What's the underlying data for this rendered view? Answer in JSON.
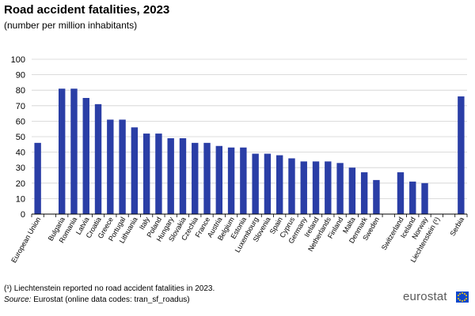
{
  "header": {
    "title": "Road accident fatalities, 2023",
    "subtitle": "(number  per million  inhabitants)"
  },
  "footer": {
    "footnote": "(¹) Liechtenstein reported no road accident fatalities in 2023.",
    "source_label": "Source:",
    "source_text": " Eurostat (online data codes: tran_sf_roadus)",
    "logo_text": "eurostat"
  },
  "colors": {
    "bar": "#2a3ea6",
    "grid": "#d0d0d0",
    "axis": "#000000"
  },
  "chart_data": {
    "type": "bar",
    "title": "Road accident fatalities, 2023",
    "subtitle": "(number  per million  inhabitants)",
    "xlabel": "",
    "ylabel": "",
    "ylim": [
      0,
      100
    ],
    "yticks": [
      0,
      10,
      20,
      30,
      40,
      50,
      60,
      70,
      80,
      90,
      100
    ],
    "grid": true,
    "categories": [
      "European Union",
      "",
      "Bulgaria",
      "Romania",
      "Latvia",
      "Croatia",
      "Greece",
      "Portugal",
      "Lithuania",
      "Italy",
      "Poland",
      "Hungary",
      "Slovakia",
      "Czechia",
      "France",
      "Austria",
      "Belgium",
      "Estonia",
      "Luxembourg",
      "Slovenia",
      "Spain",
      "Cyprus",
      "Germany",
      "Ireland",
      "Netherlands",
      "Finland",
      "Malta",
      "Denmark",
      "Sweden",
      "",
      "Switzerland",
      "Iceland",
      "Norway",
      "Liechtenstein (¹)",
      "",
      "Serbia"
    ],
    "values": [
      46,
      null,
      81,
      81,
      75,
      71,
      61,
      61,
      56,
      52,
      52,
      49,
      49,
      46,
      46,
      44,
      43,
      43,
      39,
      39,
      38,
      36,
      34,
      34,
      34,
      33,
      30,
      27,
      22,
      null,
      27,
      21,
      20,
      0,
      null,
      76
    ]
  }
}
